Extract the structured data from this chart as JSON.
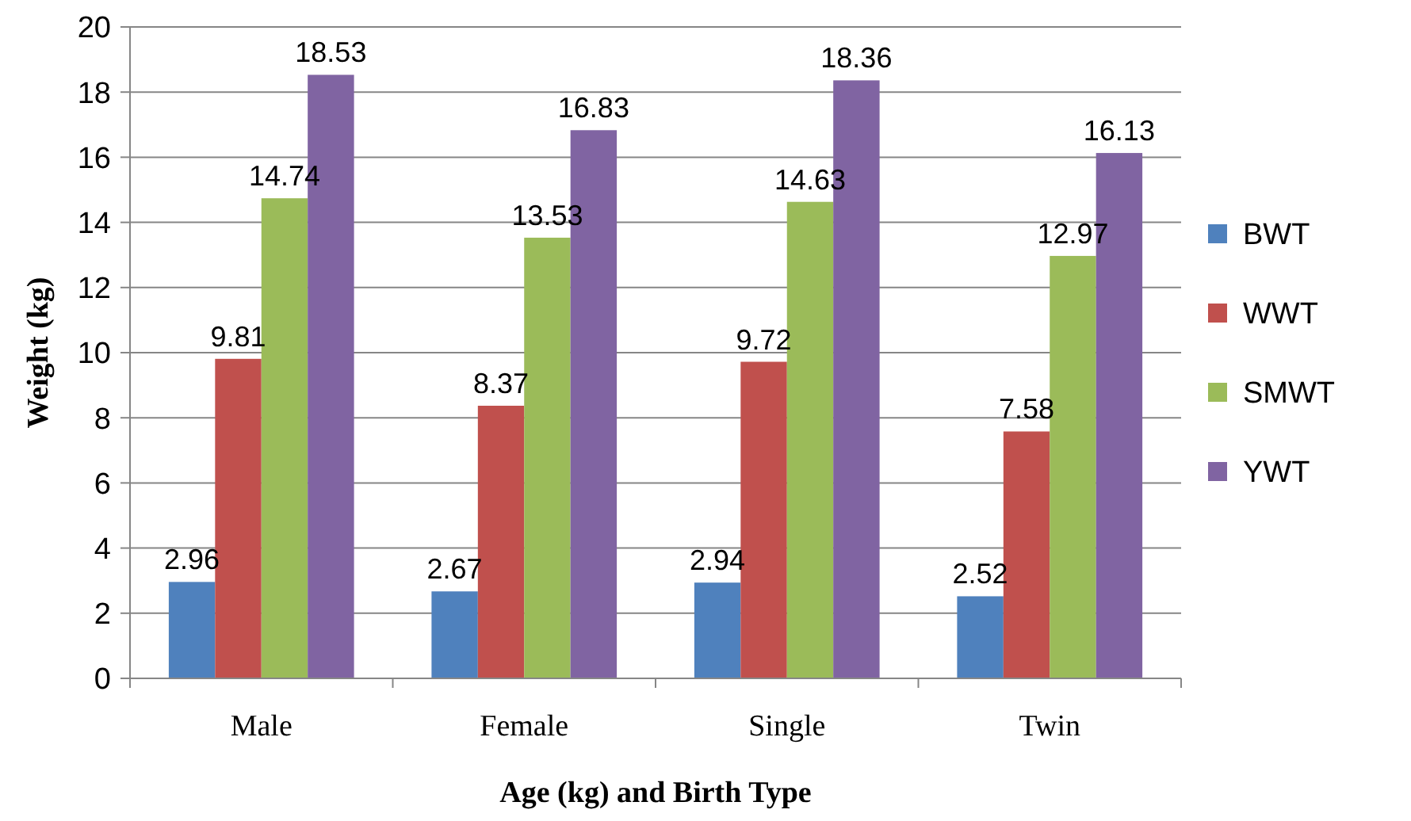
{
  "chart_data": {
    "type": "bar",
    "xlabel": "Age (kg) and Birth Type",
    "ylabel": "Weight (kg)",
    "categories": [
      "Male",
      "Female",
      "Single",
      "Twin"
    ],
    "series": [
      {
        "name": "BWT",
        "color": "#4f81bd",
        "values": [
          2.96,
          2.67,
          2.94,
          2.52
        ]
      },
      {
        "name": "WWT",
        "color": "#c0504d",
        "values": [
          9.81,
          8.37,
          9.72,
          7.58
        ]
      },
      {
        "name": "SMWT",
        "color": "#9bbb59",
        "values": [
          14.74,
          13.53,
          14.63,
          12.97
        ]
      },
      {
        "name": "YWT",
        "color": "#8064a2",
        "values": [
          18.53,
          16.83,
          18.36,
          16.13
        ]
      }
    ],
    "ylim": [
      0,
      20
    ],
    "yticks": [
      0,
      2,
      4,
      6,
      8,
      10,
      12,
      14,
      16,
      18,
      20
    ],
    "grid": "y",
    "legend": "right",
    "data_labels": true
  }
}
